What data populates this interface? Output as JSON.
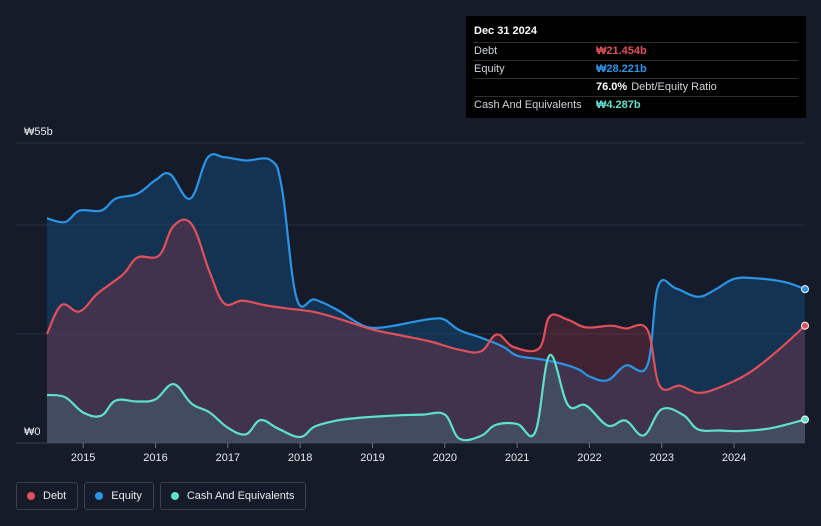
{
  "tooltip": {
    "date": "Dec 31 2024",
    "rows": [
      {
        "label": "Debt",
        "value": "₩21.454b",
        "color": "#e0505a"
      },
      {
        "label": "Equity",
        "value": "₩28.221b",
        "color": "#2a94e6"
      },
      {
        "label": "",
        "value": "76.0%",
        "sub": "Debt/Equity Ratio",
        "color": "#ffffff"
      },
      {
        "label": "Cash And Equivalents",
        "value": "₩4.287b",
        "color": "#5ee0cc"
      }
    ]
  },
  "legend": [
    {
      "label": "Debt",
      "color": "#e0505a"
    },
    {
      "label": "Equity",
      "color": "#2a94e6"
    },
    {
      "label": "Cash And Equivalents",
      "color": "#5ee0cc"
    }
  ],
  "chart_data": {
    "type": "area",
    "ylabel_top": "₩55b",
    "ylabel_bottom": "₩0",
    "ylim": [
      0,
      55
    ],
    "xlim": [
      2014.5,
      2025.0
    ],
    "x_ticks": [
      "2015",
      "2016",
      "2017",
      "2018",
      "2019",
      "2020",
      "2021",
      "2022",
      "2023",
      "2024"
    ],
    "x_tick_values": [
      2015,
      2016,
      2017,
      2018,
      2019,
      2020,
      2021,
      2022,
      2023,
      2024
    ],
    "series": [
      {
        "name": "Equity",
        "color": "#2a94e6",
        "points": [
          [
            2014.5,
            41.2
          ],
          [
            2014.75,
            40.5
          ],
          [
            2014.95,
            42.6
          ],
          [
            2015.25,
            42.6
          ],
          [
            2015.45,
            44.8
          ],
          [
            2015.75,
            45.7
          ],
          [
            2016.0,
            48.2
          ],
          [
            2016.2,
            49.3
          ],
          [
            2016.48,
            44.8
          ],
          [
            2016.72,
            52.3
          ],
          [
            2016.95,
            52.4
          ],
          [
            2017.25,
            51.8
          ],
          [
            2017.6,
            51.8
          ],
          [
            2017.75,
            46.5
          ],
          [
            2017.95,
            26.6
          ],
          [
            2018.2,
            26.3
          ],
          [
            2018.5,
            24.5
          ],
          [
            2018.8,
            22.0
          ],
          [
            2019.0,
            21.1
          ],
          [
            2019.3,
            21.5
          ],
          [
            2019.6,
            22.3
          ],
          [
            2019.85,
            22.8
          ],
          [
            2020.0,
            22.6
          ],
          [
            2020.2,
            20.7
          ],
          [
            2020.5,
            19.3
          ],
          [
            2020.8,
            17.7
          ],
          [
            2021.0,
            16.0
          ],
          [
            2021.3,
            15.4
          ],
          [
            2021.6,
            14.6
          ],
          [
            2021.85,
            13.5
          ],
          [
            2022.0,
            12.2
          ],
          [
            2022.25,
            11.5
          ],
          [
            2022.5,
            14.2
          ],
          [
            2022.8,
            14.2
          ],
          [
            2022.95,
            28.8
          ],
          [
            2023.2,
            28.3
          ],
          [
            2023.5,
            26.8
          ],
          [
            2023.75,
            28.2
          ],
          [
            2024.0,
            30.1
          ],
          [
            2024.3,
            30.2
          ],
          [
            2024.7,
            29.5
          ],
          [
            2024.98,
            28.2
          ]
        ]
      },
      {
        "name": "Debt",
        "color": "#e0505a",
        "points": [
          [
            2014.5,
            20.0
          ],
          [
            2014.7,
            25.3
          ],
          [
            2014.95,
            24.1
          ],
          [
            2015.2,
            27.4
          ],
          [
            2015.55,
            30.9
          ],
          [
            2015.75,
            34.0
          ],
          [
            2016.05,
            34.4
          ],
          [
            2016.25,
            39.8
          ],
          [
            2016.5,
            40.1
          ],
          [
            2016.75,
            31.3
          ],
          [
            2016.95,
            25.6
          ],
          [
            2017.2,
            26.1
          ],
          [
            2017.5,
            25.3
          ],
          [
            2017.8,
            24.7
          ],
          [
            2018.2,
            24.0
          ],
          [
            2018.6,
            22.5
          ],
          [
            2019.0,
            20.8
          ],
          [
            2019.4,
            19.7
          ],
          [
            2019.8,
            18.6
          ],
          [
            2020.2,
            17.1
          ],
          [
            2020.5,
            16.8
          ],
          [
            2020.72,
            19.9
          ],
          [
            2020.95,
            17.6
          ],
          [
            2021.3,
            17.3
          ],
          [
            2021.45,
            23.2
          ],
          [
            2021.7,
            22.6
          ],
          [
            2021.95,
            21.2
          ],
          [
            2022.3,
            21.5
          ],
          [
            2022.5,
            21.0
          ],
          [
            2022.8,
            20.8
          ],
          [
            2022.97,
            10.5
          ],
          [
            2023.25,
            10.5
          ],
          [
            2023.5,
            9.2
          ],
          [
            2023.8,
            10.2
          ],
          [
            2024.2,
            12.8
          ],
          [
            2024.6,
            16.9
          ],
          [
            2024.98,
            21.5
          ]
        ]
      },
      {
        "name": "Cash And Equivalents",
        "color": "#5ee0cc",
        "points": [
          [
            2014.5,
            8.8
          ],
          [
            2014.75,
            8.4
          ],
          [
            2015.0,
            5.6
          ],
          [
            2015.25,
            5.0
          ],
          [
            2015.45,
            7.8
          ],
          [
            2015.75,
            7.6
          ],
          [
            2016.0,
            8.0
          ],
          [
            2016.25,
            10.8
          ],
          [
            2016.5,
            7.2
          ],
          [
            2016.75,
            5.6
          ],
          [
            2017.0,
            2.8
          ],
          [
            2017.25,
            1.6
          ],
          [
            2017.45,
            4.2
          ],
          [
            2017.7,
            2.6
          ],
          [
            2018.0,
            1.1
          ],
          [
            2018.2,
            3.0
          ],
          [
            2018.5,
            4.1
          ],
          [
            2018.8,
            4.6
          ],
          [
            2019.0,
            4.8
          ],
          [
            2019.4,
            5.1
          ],
          [
            2019.7,
            5.2
          ],
          [
            2020.0,
            5.2
          ],
          [
            2020.2,
            0.8
          ],
          [
            2020.5,
            1.3
          ],
          [
            2020.7,
            3.3
          ],
          [
            2021.0,
            3.5
          ],
          [
            2021.25,
            2.0
          ],
          [
            2021.45,
            16.1
          ],
          [
            2021.7,
            7.0
          ],
          [
            2021.95,
            6.9
          ],
          [
            2022.25,
            3.2
          ],
          [
            2022.5,
            4.1
          ],
          [
            2022.75,
            1.4
          ],
          [
            2023.0,
            6.2
          ],
          [
            2023.3,
            5.1
          ],
          [
            2023.5,
            2.5
          ],
          [
            2023.8,
            2.3
          ],
          [
            2024.1,
            2.2
          ],
          [
            2024.5,
            2.7
          ],
          [
            2024.98,
            4.3
          ]
        ]
      }
    ],
    "grid": true,
    "legend_position": "bottom-left"
  }
}
